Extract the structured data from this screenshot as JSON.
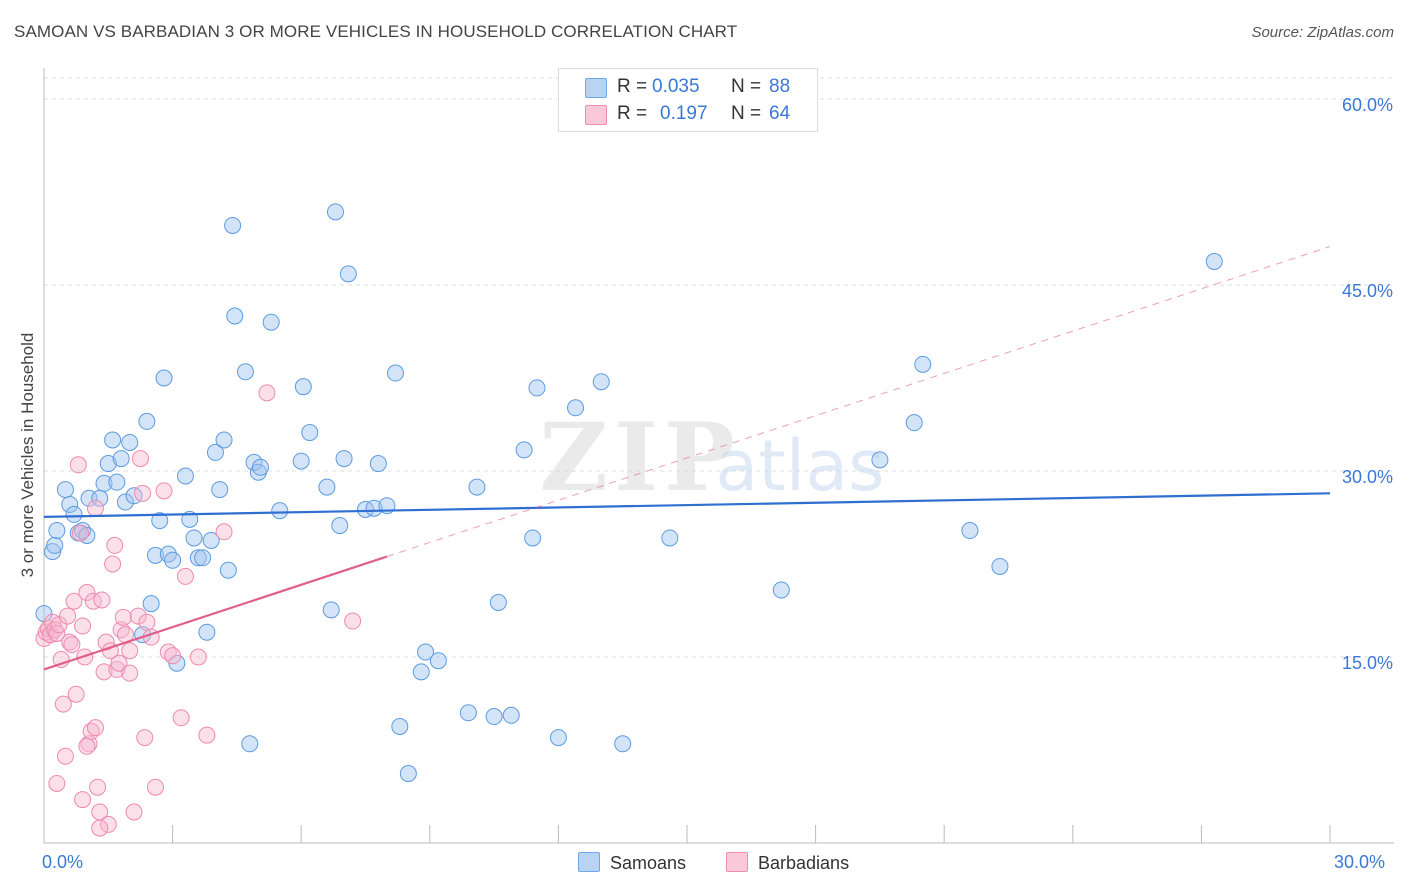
{
  "title": "SAMOAN VS BARBADIAN 3 OR MORE VEHICLES IN HOUSEHOLD CORRELATION CHART",
  "source": "Source: ZipAtlas.com",
  "watermark": {
    "zip": "ZIP",
    "atlas": "atlas"
  },
  "legend": {
    "rows": [
      {
        "r_label": "R =",
        "r_value": "0.035",
        "n_label": "N =",
        "n_value": "88",
        "color": "#6fa8e8",
        "fill": "#b9d3f3"
      },
      {
        "r_label": "R =",
        "r_value": "0.197",
        "n_label": "N =",
        "n_value": "64",
        "color": "#f08cb0",
        "fill": "#f9c9da"
      }
    ]
  },
  "bottom_legend": [
    {
      "label": "Samoans",
      "color": "#6fa8e8",
      "fill": "#b9d3f3"
    },
    {
      "label": "Barbadians",
      "color": "#f08cb0",
      "fill": "#f9c9da"
    }
  ],
  "chart_data": {
    "type": "scatter",
    "title": "SAMOAN VS BARBADIAN 3 OR MORE VEHICLES IN HOUSEHOLD CORRELATION CHART",
    "xlabel": "",
    "ylabel": "3 or more Vehicles in Household",
    "xlim": [
      0,
      30
    ],
    "ylim": [
      0,
      60
    ],
    "x_tick_labels": [
      "0.0%",
      "30.0%"
    ],
    "y_tick_labels": [
      "15.0%",
      "30.0%",
      "45.0%",
      "60.0%"
    ],
    "y_ticks": [
      15,
      30,
      45,
      60
    ],
    "series": [
      {
        "name": "Samoans",
        "color": "#5b9be0",
        "fill": "rgba(160,196,240,0.45)",
        "trend": {
          "x0": 0,
          "y0": 26.3,
          "x1": 30,
          "y1": 28.2,
          "color": "#2f6fd1",
          "dashed_extension": false
        },
        "points": [
          [
            0.0,
            18.5
          ],
          [
            0.2,
            23.5
          ],
          [
            0.25,
            24.0
          ],
          [
            0.3,
            25.2
          ],
          [
            0.5,
            28.5
          ],
          [
            0.6,
            27.3
          ],
          [
            0.7,
            26.5
          ],
          [
            0.8,
            25.0
          ],
          [
            0.9,
            25.2
          ],
          [
            1.0,
            24.8
          ],
          [
            1.05,
            27.8
          ],
          [
            1.3,
            27.8
          ],
          [
            1.4,
            29.0
          ],
          [
            1.5,
            30.6
          ],
          [
            1.6,
            32.5
          ],
          [
            1.7,
            29.1
          ],
          [
            1.8,
            31.0
          ],
          [
            1.9,
            27.5
          ],
          [
            2.0,
            32.3
          ],
          [
            2.1,
            28.0
          ],
          [
            2.3,
            16.8
          ],
          [
            2.4,
            34.0
          ],
          [
            2.5,
            19.3
          ],
          [
            2.6,
            23.2
          ],
          [
            2.7,
            26.0
          ],
          [
            2.8,
            37.5
          ],
          [
            2.9,
            23.3
          ],
          [
            3.0,
            22.8
          ],
          [
            3.1,
            14.5
          ],
          [
            3.3,
            29.6
          ],
          [
            3.4,
            26.1
          ],
          [
            3.5,
            24.6
          ],
          [
            3.6,
            23.0
          ],
          [
            3.7,
            23.0
          ],
          [
            3.8,
            17.0
          ],
          [
            3.9,
            24.4
          ],
          [
            4.0,
            31.5
          ],
          [
            4.1,
            28.5
          ],
          [
            4.2,
            32.5
          ],
          [
            4.3,
            22.0
          ],
          [
            4.4,
            49.8
          ],
          [
            4.45,
            42.5
          ],
          [
            4.7,
            38.0
          ],
          [
            4.8,
            8.0
          ],
          [
            4.9,
            30.7
          ],
          [
            5.0,
            29.9
          ],
          [
            5.05,
            30.3
          ],
          [
            5.3,
            42.0
          ],
          [
            5.5,
            26.8
          ],
          [
            6.0,
            30.8
          ],
          [
            6.05,
            36.8
          ],
          [
            6.2,
            33.1
          ],
          [
            6.6,
            28.7
          ],
          [
            6.8,
            50.9
          ],
          [
            6.9,
            25.6
          ],
          [
            7.0,
            31.0
          ],
          [
            7.1,
            45.9
          ],
          [
            6.7,
            18.8
          ],
          [
            7.5,
            26.9
          ],
          [
            7.7,
            27.0
          ],
          [
            7.8,
            30.6
          ],
          [
            8.0,
            27.2
          ],
          [
            8.2,
            37.9
          ],
          [
            8.3,
            9.4
          ],
          [
            8.5,
            5.6
          ],
          [
            8.8,
            13.8
          ],
          [
            8.9,
            15.4
          ],
          [
            9.2,
            14.7
          ],
          [
            9.9,
            10.5
          ],
          [
            10.1,
            28.7
          ],
          [
            10.5,
            10.2
          ],
          [
            10.6,
            19.4
          ],
          [
            10.9,
            10.3
          ],
          [
            11.2,
            31.7
          ],
          [
            11.4,
            24.6
          ],
          [
            11.5,
            36.7
          ],
          [
            12.0,
            8.5
          ],
          [
            12.4,
            35.1
          ],
          [
            13.0,
            37.2
          ],
          [
            13.5,
            8.0
          ],
          [
            14.6,
            24.6
          ],
          [
            17.2,
            20.4
          ],
          [
            19.5,
            30.9
          ],
          [
            20.3,
            33.9
          ],
          [
            20.5,
            38.6
          ],
          [
            21.6,
            25.2
          ],
          [
            22.3,
            22.3
          ],
          [
            27.3,
            46.9
          ]
        ]
      },
      {
        "name": "Barbadians",
        "color": "#ee8aae",
        "fill": "rgba(246,185,207,0.45)",
        "trend": {
          "x0": 0,
          "y0": 14.0,
          "x1": 8.0,
          "y1": 23.1,
          "color": "#e0608c",
          "dashed_extension": true,
          "x_ext": 30,
          "y_ext": 48.1
        },
        "points": [
          [
            0.0,
            16.5
          ],
          [
            0.05,
            17.0
          ],
          [
            0.1,
            17.3
          ],
          [
            0.15,
            16.8
          ],
          [
            0.2,
            17.8
          ],
          [
            0.25,
            17.2
          ],
          [
            0.3,
            16.9
          ],
          [
            0.35,
            17.6
          ],
          [
            0.4,
            14.8
          ],
          [
            0.45,
            11.2
          ],
          [
            0.5,
            7.0
          ],
          [
            0.55,
            18.3
          ],
          [
            0.6,
            16.2
          ],
          [
            0.65,
            16.0
          ],
          [
            0.7,
            19.5
          ],
          [
            0.75,
            12.0
          ],
          [
            0.8,
            30.5
          ],
          [
            0.85,
            25.0
          ],
          [
            0.9,
            17.5
          ],
          [
            0.95,
            15.0
          ],
          [
            1.0,
            20.2
          ],
          [
            1.05,
            8.0
          ],
          [
            1.1,
            9.0
          ],
          [
            1.15,
            19.5
          ],
          [
            1.2,
            27.0
          ],
          [
            1.25,
            4.5
          ],
          [
            1.3,
            2.5
          ],
          [
            1.35,
            19.6
          ],
          [
            1.4,
            13.8
          ],
          [
            1.45,
            16.2
          ],
          [
            1.5,
            1.5
          ],
          [
            1.55,
            15.5
          ],
          [
            1.6,
            22.5
          ],
          [
            1.65,
            24.0
          ],
          [
            1.7,
            14.0
          ],
          [
            1.75,
            14.5
          ],
          [
            1.8,
            17.2
          ],
          [
            1.85,
            18.2
          ],
          [
            1.9,
            16.8
          ],
          [
            2.0,
            15.5
          ],
          [
            2.1,
            2.5
          ],
          [
            2.2,
            18.3
          ],
          [
            2.25,
            31.0
          ],
          [
            2.3,
            28.2
          ],
          [
            2.35,
            8.5
          ],
          [
            2.4,
            17.8
          ],
          [
            2.5,
            16.6
          ],
          [
            2.6,
            4.5
          ],
          [
            2.8,
            28.4
          ],
          [
            2.9,
            15.4
          ],
          [
            3.0,
            15.1
          ],
          [
            3.2,
            10.1
          ],
          [
            3.3,
            21.5
          ],
          [
            3.6,
            15.0
          ],
          [
            3.8,
            8.7
          ],
          [
            4.2,
            25.1
          ],
          [
            5.2,
            36.3
          ],
          [
            7.2,
            17.9
          ],
          [
            1.2,
            9.3
          ],
          [
            0.3,
            4.8
          ],
          [
            0.9,
            3.5
          ],
          [
            1.3,
            1.2
          ],
          [
            2.0,
            13.7
          ],
          [
            1.0,
            7.8
          ]
        ]
      }
    ]
  }
}
